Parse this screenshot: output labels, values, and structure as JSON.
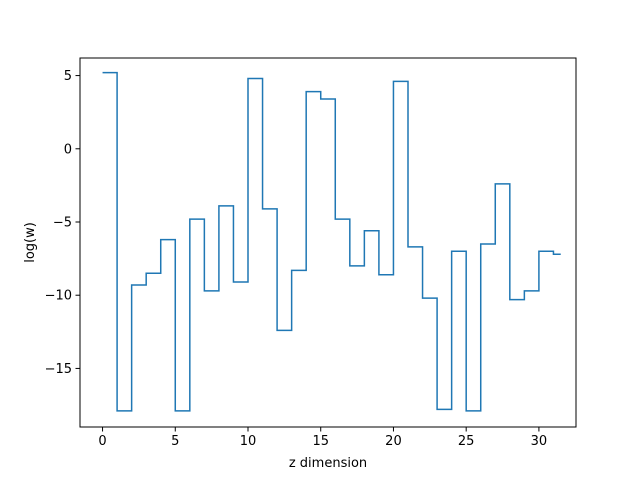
{
  "chart_data": {
    "type": "line",
    "drawstyle": "steps-post",
    "title": "",
    "xlabel": "z dimension",
    "ylabel": "log(w)",
    "xlim": [
      -1.55,
      32.55
    ],
    "ylim": [
      -19.0,
      6.2
    ],
    "xticks": [
      0,
      5,
      10,
      15,
      20,
      25,
      30
    ],
    "yticks": [
      5,
      0,
      -5,
      -10,
      -15
    ],
    "ytick_labels": [
      "5",
      "0",
      "−5",
      "−10",
      "−15"
    ],
    "grid": false,
    "line_color": "#1f77b4",
    "series": [
      {
        "x": [
          0,
          1,
          2,
          3,
          4,
          5,
          6,
          7,
          8,
          9,
          10,
          11,
          12,
          13,
          14,
          15,
          16,
          17,
          18,
          19,
          20,
          21,
          22,
          23,
          24,
          25,
          26,
          27,
          28,
          29,
          30,
          31
        ],
        "values": [
          5.2,
          -17.9,
          -9.3,
          -8.5,
          -6.2,
          -17.9,
          -4.8,
          -9.7,
          -3.9,
          -9.1,
          4.8,
          -4.1,
          -12.4,
          -8.3,
          3.9,
          3.4,
          -4.8,
          -8.0,
          -5.6,
          -8.6,
          4.6,
          -6.7,
          -10.2,
          -17.8,
          -7.0,
          -17.9,
          -6.5,
          -2.4,
          -10.3,
          -9.7,
          -7.0,
          -7.2
        ]
      }
    ]
  }
}
